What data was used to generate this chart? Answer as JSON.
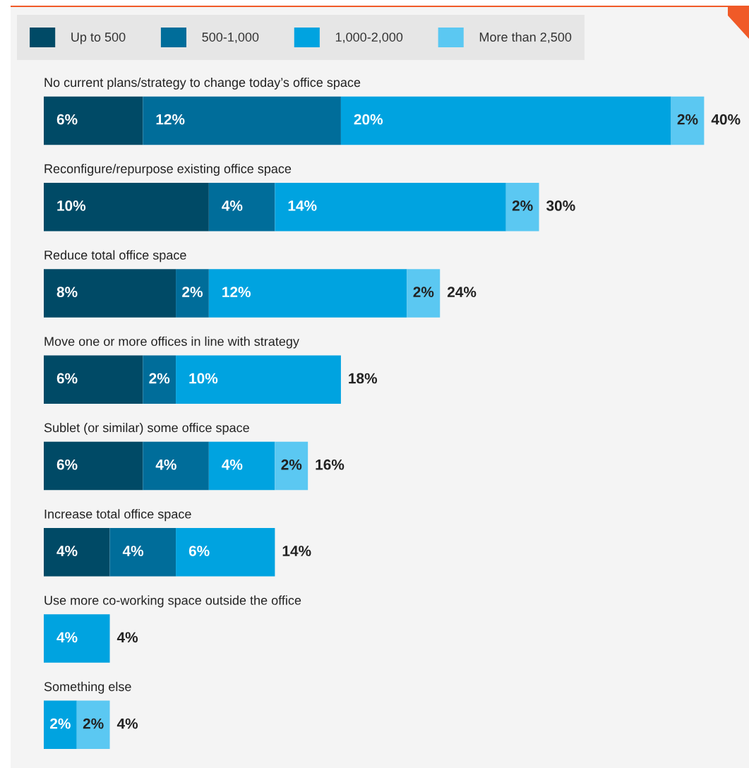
{
  "chart_data": {
    "type": "bar",
    "orientation": "horizontal",
    "stacked": true,
    "legend": "top left",
    "categories": [
      "No current plans/strategy to change today’s office space",
      "Reconfigure/repurpose existing office space",
      "Reduce total office space",
      "Move one or more offices in line with strategy",
      "Sublet (or similar) some office space",
      "Increase total office space",
      "Use more co-working space outside the office",
      "Something else"
    ],
    "series": [
      {
        "name": "Up to 500",
        "color": "#004a66",
        "values": [
          6,
          10,
          8,
          6,
          6,
          4,
          null,
          null
        ],
        "value_labels": [
          "6%",
          "10%",
          "8%",
          "6%",
          "6%",
          "4%",
          null,
          null
        ]
      },
      {
        "name": "500-1,000",
        "color": "#006d9a",
        "values": [
          12,
          4,
          2,
          2,
          4,
          4,
          null,
          null
        ],
        "value_labels": [
          "12%",
          "4%",
          "2%",
          "2%",
          "4%",
          "4%",
          null,
          null
        ]
      },
      {
        "name": "1,000-2,000",
        "color": "#00a3e0",
        "values": [
          20,
          14,
          12,
          10,
          4,
          6,
          4,
          2
        ],
        "value_labels": [
          "20%",
          "14%",
          "12%",
          "10%",
          "4%",
          "6%",
          "4%",
          "2%"
        ]
      },
      {
        "name": "More than 2,500",
        "color": "#5bc8f2",
        "values": [
          2,
          2,
          2,
          null,
          2,
          null,
          null,
          2
        ],
        "value_labels": [
          "2%",
          "2%",
          "2%",
          null,
          "2%",
          null,
          null,
          "2%"
        ]
      }
    ],
    "totals": [
      "40%",
      "30%",
      "24%",
      "18%",
      "16%",
      "14%",
      "4%",
      "4%"
    ]
  }
}
